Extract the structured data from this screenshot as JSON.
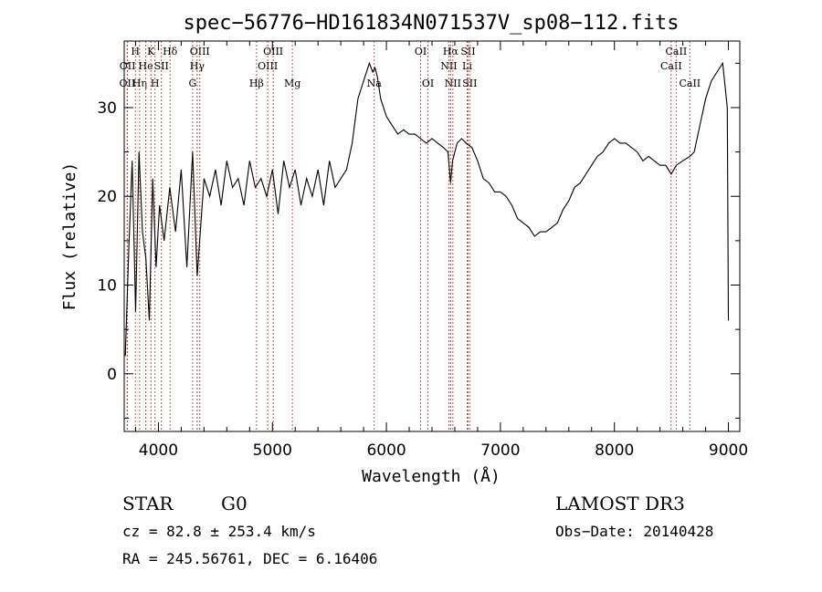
{
  "chart_data": {
    "type": "line",
    "title": "spec−56776−HD161834N071537V_sp08−112.fits",
    "xlabel": "Wavelength (Å)",
    "ylabel": "Flux (relative)",
    "xlim": [
      3700,
      9100
    ],
    "ylim": [
      -6.5,
      37.5
    ],
    "xticks": [
      4000,
      5000,
      6000,
      7000,
      8000,
      9000
    ],
    "yticks": [
      0,
      10,
      20,
      30
    ],
    "grid": false,
    "line_color": "#000000",
    "marker_color": "#c0504d",
    "series": [
      {
        "x": [
          3710,
          3740,
          3770,
          3800,
          3830,
          3860,
          3890,
          3920,
          3950,
          3980,
          4010,
          4050,
          4100,
          4150,
          4200,
          4250,
          4300,
          4340,
          4400,
          4450,
          4500,
          4550,
          4600,
          4650,
          4700,
          4750,
          4800,
          4850,
          4900,
          4950,
          5000,
          5050,
          5100,
          5150,
          5200,
          5250,
          5300,
          5350,
          5400,
          5450,
          5500,
          5550,
          5600,
          5650,
          5700,
          5750,
          5800,
          5850,
          5880,
          5900,
          5920,
          5950,
          6000,
          6050,
          6100,
          6150,
          6200,
          6250,
          6300,
          6350,
          6400,
          6450,
          6500,
          6540,
          6563,
          6580,
          6620,
          6660,
          6700,
          6750,
          6800,
          6850,
          6900,
          6950,
          7000,
          7050,
          7100,
          7150,
          7200,
          7250,
          7300,
          7350,
          7400,
          7450,
          7500,
          7550,
          7600,
          7650,
          7700,
          7750,
          7800,
          7850,
          7900,
          7950,
          8000,
          8050,
          8100,
          8150,
          8200,
          8250,
          8300,
          8350,
          8400,
          8450,
          8498,
          8542,
          8600,
          8662,
          8700,
          8750,
          8800,
          8850,
          8900,
          8950,
          8990,
          9000
        ],
        "y": [
          2,
          14,
          24,
          7,
          25,
          16,
          13,
          6,
          22,
          12,
          19,
          15,
          21,
          16,
          23,
          12,
          25,
          11,
          22,
          20,
          23,
          19,
          24,
          21,
          22,
          19,
          24,
          21,
          22,
          20,
          23,
          18,
          24,
          21,
          23,
          19,
          22,
          20,
          23,
          19,
          24,
          21,
          22,
          23,
          26,
          31,
          33,
          35,
          34,
          34.5,
          33.5,
          31,
          29,
          28,
          27,
          27.5,
          27,
          27,
          26.5,
          26,
          26.5,
          26,
          25.5,
          25,
          21.5,
          24,
          26,
          26.5,
          26,
          25.5,
          24,
          22,
          21.5,
          20.5,
          20.5,
          20,
          19,
          17.5,
          17,
          16.5,
          15.5,
          16,
          16,
          16.5,
          17,
          18.5,
          19.5,
          21,
          21.5,
          22.5,
          23.5,
          24.5,
          25,
          26,
          26.5,
          26,
          26,
          25.5,
          25,
          24,
          24.5,
          24,
          23.5,
          23.5,
          22.5,
          23.5,
          24,
          24.5,
          25,
          28,
          31,
          33,
          34,
          35,
          30,
          6
        ]
      }
    ],
    "line_markers": [
      {
        "wl": 3727,
        "label": "OII",
        "row": 2
      },
      {
        "wl": 3729,
        "label": "OII",
        "row": 1
      },
      {
        "wl": 3798,
        "label": "H",
        "row": 0
      },
      {
        "wl": 3835,
        "label": "Hη",
        "row": 2
      },
      {
        "wl": 3889,
        "label": "He",
        "row": 1
      },
      {
        "wl": 3934,
        "label": "K",
        "row": 0
      },
      {
        "wl": 3970,
        "label": "H",
        "row": 2
      },
      {
        "wl": 4026,
        "label": "SII",
        "row": 1
      },
      {
        "wl": 4102,
        "label": "Hδ",
        "row": 0
      },
      {
        "wl": 4300,
        "label": "G",
        "row": 2
      },
      {
        "wl": 4340,
        "label": "Hγ",
        "row": 1
      },
      {
        "wl": 4363,
        "label": "OIII",
        "row": 0
      },
      {
        "wl": 4861,
        "label": "Hβ",
        "row": 2
      },
      {
        "wl": 4959,
        "label": "OIII",
        "row": 1
      },
      {
        "wl": 5007,
        "label": "OIII",
        "row": 0
      },
      {
        "wl": 5175,
        "label": "Mg",
        "row": 2
      },
      {
        "wl": 5893,
        "label": "Na",
        "row": 2
      },
      {
        "wl": 6300,
        "label": "OI",
        "row": 0
      },
      {
        "wl": 6364,
        "label": "OI",
        "row": 2
      },
      {
        "wl": 6548,
        "label": "NII",
        "row": 1
      },
      {
        "wl": 6563,
        "label": "Hα",
        "row": 0
      },
      {
        "wl": 6583,
        "label": "NII",
        "row": 2
      },
      {
        "wl": 6708,
        "label": "Li",
        "row": 1
      },
      {
        "wl": 6716,
        "label": "SII",
        "row": 0
      },
      {
        "wl": 6731,
        "label": "SII",
        "row": 2
      },
      {
        "wl": 8498,
        "label": "CaII",
        "row": 1
      },
      {
        "wl": 8542,
        "label": "CaII",
        "row": 0
      },
      {
        "wl": 8662,
        "label": "CaII",
        "row": 2
      }
    ]
  },
  "info": {
    "object_class": "STAR",
    "subclass": "G0",
    "survey": "LAMOST DR3",
    "redshift": "cz = 82.8 ± 253.4 km/s",
    "obs_date": "Obs−Date: 20140428",
    "coords": "RA = 245.56761, DEC =    6.16406"
  }
}
